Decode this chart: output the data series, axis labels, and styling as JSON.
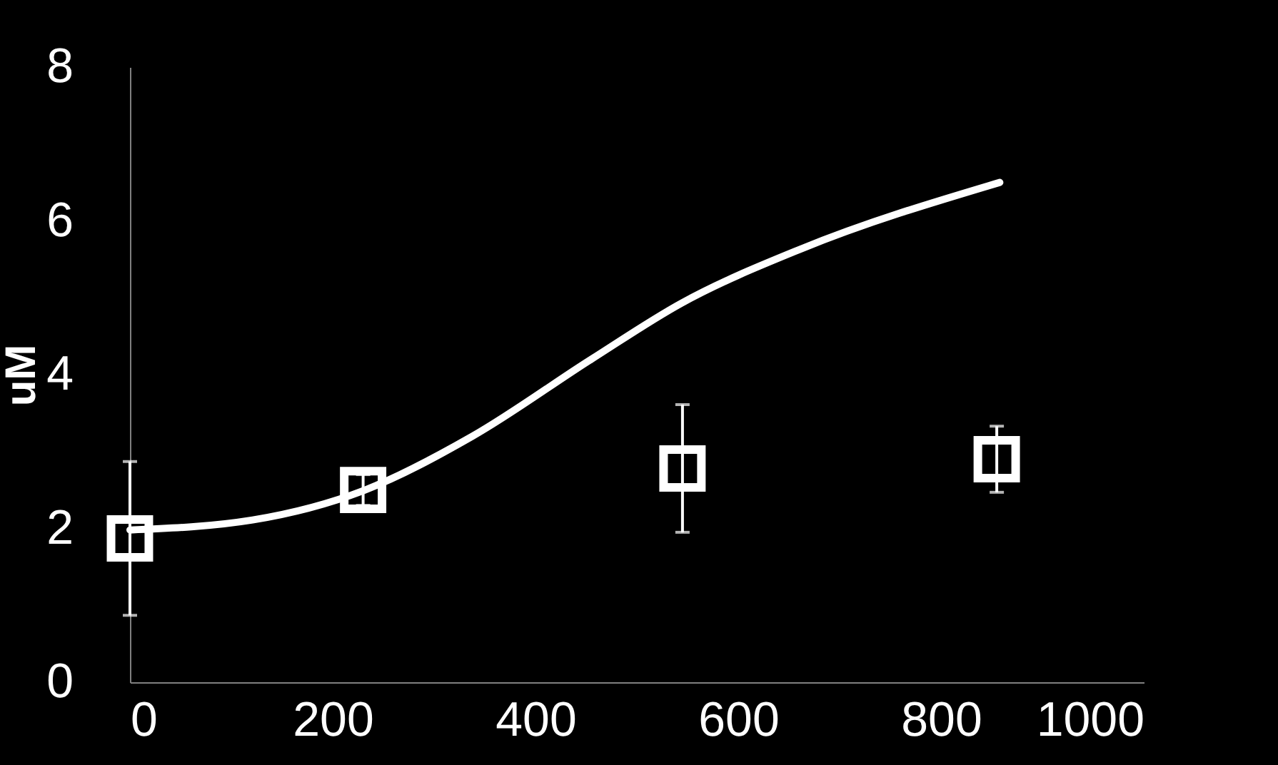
{
  "chart_data": {
    "type": "scatter",
    "ylabel": "uM",
    "xlim": [
      0,
      1000
    ],
    "xticks": [
      0,
      200,
      400,
      600,
      800,
      1000
    ],
    "ylim": [
      0,
      8
    ],
    "yticks": [
      0,
      2,
      4,
      6,
      8
    ],
    "grid": false,
    "series": [
      {
        "color": "#ffffff",
        "marker": "square",
        "x": [
          0,
          230,
          545,
          855
        ],
        "values": [
          1.87,
          2.5,
          2.78,
          2.9
        ],
        "errors": [
          1.0,
          0.2,
          0.83,
          0.43
        ]
      },
      {
        "type": "line",
        "color": "#ffffff",
        "marker": "none",
        "line_style": "solid",
        "x": [
          0,
          121,
          232,
          338,
          455,
          544,
          661,
          858
        ],
        "values": [
          1.98,
          2.11,
          2.5,
          3.2,
          4.2,
          4.93,
          5.63,
          6.5
        ]
      }
    ]
  }
}
